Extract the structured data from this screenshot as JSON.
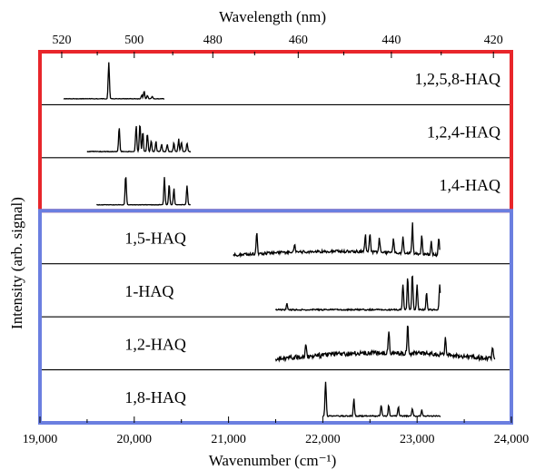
{
  "chart_data": {
    "type": "line",
    "title": "",
    "xlabel": "Wavenumber (cm⁻¹)",
    "ylabel": "Intensity (arb. signal)",
    "top_xlabel": "Wavelength (nm)",
    "xlim": [
      19000,
      24000
    ],
    "xticks": [
      19000,
      20000,
      21000,
      22000,
      23000,
      24000
    ],
    "xtick_labels": [
      "19,000",
      "20,000",
      "21,000",
      "22,000",
      "23,000",
      "24,000"
    ],
    "top_ticks_nm": [
      520,
      500,
      480,
      460,
      440,
      420
    ],
    "top_tick_labels": [
      "520",
      "500",
      "480",
      "460",
      "440",
      "420"
    ],
    "grid": false,
    "groups": [
      {
        "name": "group-top",
        "color": "#e8262b",
        "panels": [
          "1,2,5,8-HAQ",
          "1,2,4-HAQ",
          "1,4-HAQ"
        ]
      },
      {
        "name": "group-bottom",
        "color": "#6b7fe0",
        "panels": [
          "1,5-HAQ",
          "1-HAQ",
          "1,2-HAQ",
          "1,8-HAQ"
        ]
      }
    ],
    "series": [
      {
        "name": "1,2,5,8-HAQ",
        "label_align": "right",
        "range": [
          19250,
          20320
        ],
        "peaks": [
          [
            19730,
            1.0
          ],
          [
            20105,
            0.18
          ],
          [
            20080,
            0.1
          ],
          [
            20140,
            0.08
          ],
          [
            20190,
            0.06
          ]
        ],
        "baseline": 0.02
      },
      {
        "name": "1,2,4-HAQ",
        "label_align": "right",
        "range": [
          19500,
          20600
        ],
        "peaks": [
          [
            19840,
            0.62
          ],
          [
            20020,
            0.72
          ],
          [
            20060,
            0.78
          ],
          [
            20090,
            0.5
          ],
          [
            20140,
            0.45
          ],
          [
            20180,
            0.3
          ],
          [
            20230,
            0.25
          ],
          [
            20290,
            0.2
          ],
          [
            20350,
            0.2
          ],
          [
            20420,
            0.22
          ],
          [
            20470,
            0.3
          ],
          [
            20500,
            0.25
          ],
          [
            20560,
            0.2
          ]
        ],
        "baseline": 0.03
      },
      {
        "name": "1,4-HAQ",
        "label_align": "right",
        "range": [
          19600,
          20600
        ],
        "peaks": [
          [
            19910,
            0.85
          ],
          [
            20320,
            0.65
          ],
          [
            20370,
            0.55
          ],
          [
            20420,
            0.4
          ],
          [
            20560,
            0.48
          ]
        ],
        "baseline": 0.02
      },
      {
        "name": "1,5-HAQ",
        "label_align": "left",
        "range": [
          21050,
          23240
        ],
        "peaks": [
          [
            21300,
            0.55
          ],
          [
            21700,
            0.2
          ],
          [
            22450,
            0.45
          ],
          [
            22500,
            0.5
          ],
          [
            22600,
            0.35
          ],
          [
            22750,
            0.38
          ],
          [
            22850,
            0.4
          ],
          [
            22950,
            0.78
          ],
          [
            23050,
            0.45
          ],
          [
            23150,
            0.35
          ],
          [
            23230,
            0.45
          ]
        ],
        "baseline": 0.12
      },
      {
        "name": "1-HAQ",
        "label_align": "left",
        "range": [
          21500,
          23250
        ],
        "peaks": [
          [
            21620,
            0.18
          ],
          [
            22850,
            0.7
          ],
          [
            22900,
            0.85
          ],
          [
            22950,
            1.0
          ],
          [
            23000,
            0.6
          ],
          [
            23100,
            0.45
          ],
          [
            23240,
            0.7
          ]
        ],
        "baseline": 0.06
      },
      {
        "name": "1,2-HAQ",
        "label_align": "left",
        "range": [
          21500,
          23830
        ],
        "peaks": [
          [
            21820,
            0.28
          ],
          [
            22700,
            0.6
          ],
          [
            22900,
            0.72
          ],
          [
            23300,
            0.45
          ],
          [
            23800,
            0.3
          ]
        ],
        "baseline": 0.2
      },
      {
        "name": "1,8-HAQ",
        "label_align": "left",
        "range": [
          22000,
          23250
        ],
        "peaks": [
          [
            22030,
            0.95
          ],
          [
            22330,
            0.42
          ],
          [
            22620,
            0.32
          ],
          [
            22700,
            0.28
          ],
          [
            22800,
            0.25
          ],
          [
            22950,
            0.2
          ],
          [
            23050,
            0.15
          ]
        ],
        "baseline": 0.05
      }
    ]
  }
}
